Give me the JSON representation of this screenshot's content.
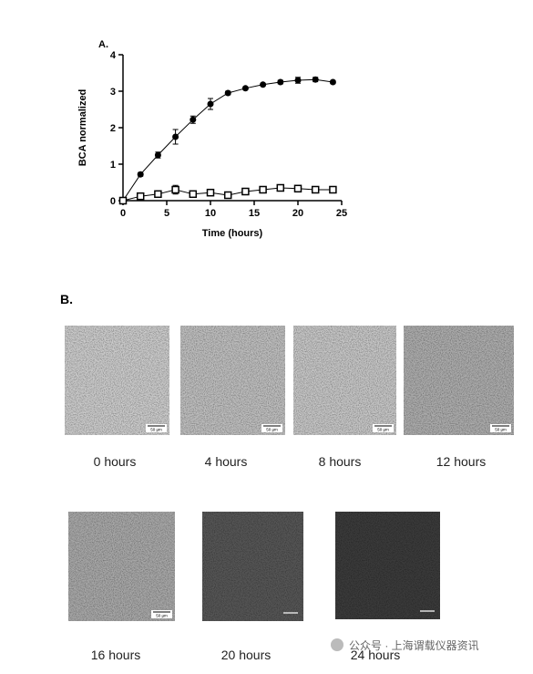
{
  "chart_data": {
    "type": "line",
    "panel_label": "A.",
    "xlabel": "Time (hours)",
    "ylabel": "BCA normalized",
    "x": [
      0,
      2,
      4,
      6,
      8,
      10,
      12,
      14,
      16,
      18,
      20,
      22,
      24
    ],
    "series": [
      {
        "marker": "filled-circle",
        "color": "#000000",
        "values": [
          0,
          0.72,
          1.25,
          1.75,
          2.22,
          2.65,
          2.95,
          3.08,
          3.18,
          3.25,
          3.3,
          3.32,
          3.25
        ],
        "errors": [
          0.03,
          0.05,
          0.08,
          0.2,
          0.1,
          0.15,
          0.05,
          0.04,
          0.04,
          0.05,
          0.08,
          0.06,
          0.04
        ]
      },
      {
        "marker": "open-square",
        "color": "#000000",
        "values": [
          0,
          0.12,
          0.18,
          0.3,
          0.18,
          0.22,
          0.15,
          0.25,
          0.3,
          0.35,
          0.33,
          0.3,
          0.3
        ],
        "errors": [
          0.02,
          0.03,
          0.05,
          0.12,
          0.08,
          0.06,
          0.04,
          0.03,
          0.03,
          0.03,
          0.03,
          0.03,
          0.03
        ]
      }
    ],
    "xlim": [
      0,
      25
    ],
    "xticks": [
      0,
      5,
      10,
      15,
      20,
      25
    ],
    "ylim": [
      0,
      4
    ],
    "yticks": [
      0,
      1,
      2,
      3,
      4
    ]
  },
  "panel_b": {
    "label": "B.",
    "images": [
      {
        "caption": "0 hours",
        "scale_bar": "50 µm",
        "color": "#cbcbcb"
      },
      {
        "caption": "4 hours",
        "scale_bar": "50 µm",
        "color": "#bebebe"
      },
      {
        "caption": "8 hours",
        "scale_bar": "50 µm",
        "color": "#c6c6c6"
      },
      {
        "caption": "12 hours",
        "scale_bar": "50 µm",
        "color": "#acacac"
      },
      {
        "caption": "16 hours",
        "scale_bar": "50 µm",
        "color": "#a8a8a8"
      },
      {
        "caption": "20 hours",
        "color": "#565656"
      },
      {
        "caption": "24 hours",
        "color": "#3b3b3b"
      }
    ]
  },
  "watermark": "公众号 · 上海谓载仪器资讯"
}
